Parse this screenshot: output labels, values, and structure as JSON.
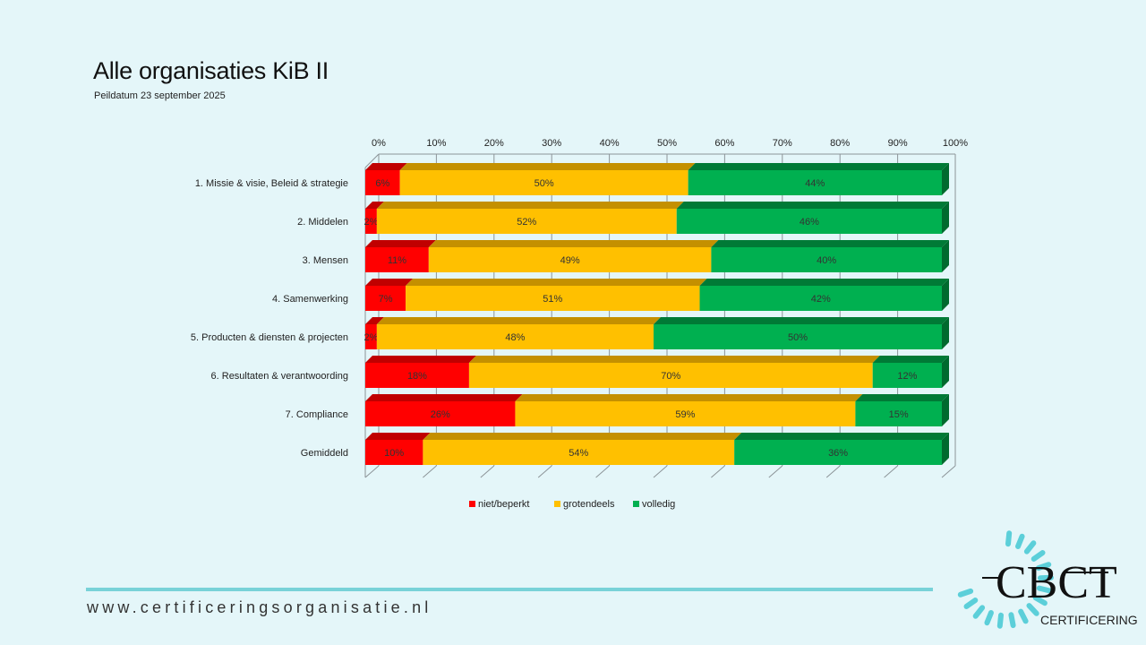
{
  "slide": {
    "title": "Alle organisaties KiB II",
    "subtitle": "Peildatum 23 september 2025",
    "footer_url": "www.certificeringsorganisatie.nl",
    "logo": {
      "mark": "CBCT",
      "text": "CERTIFICERING",
      "accent_color": "#5ccfd9"
    }
  },
  "chart_data": {
    "type": "bar",
    "orientation": "horizontal",
    "stacked": "percent",
    "style_3d": true,
    "title": "",
    "xlabel": "",
    "ylabel": "",
    "xlim": [
      0,
      100
    ],
    "x_ticks": [
      "0%",
      "10%",
      "20%",
      "30%",
      "40%",
      "50%",
      "60%",
      "70%",
      "80%",
      "90%",
      "100%"
    ],
    "x_axis_position": "top",
    "grid": true,
    "legend_position": "bottom",
    "categories": [
      "1. Missie & visie, Beleid & strategie",
      "2. Middelen",
      "3. Mensen",
      "4. Samenwerking",
      "5. Producten & diensten & projecten",
      "6. Resultaten & verantwoording",
      "7. Compliance",
      "Gemiddeld"
    ],
    "series": [
      {
        "name": "niet/beperkt",
        "color": "#ff0000",
        "top_color": "#c00000",
        "side_color": "#b00000",
        "values": [
          6,
          2,
          11,
          7,
          2,
          18,
          26,
          10
        ],
        "labels": [
          "6%",
          "2%",
          "11%",
          "7%",
          "2%",
          "18%",
          "26%",
          "10%"
        ]
      },
      {
        "name": "grotendeels",
        "color": "#ffc000",
        "top_color": "#c49000",
        "side_color": "#b08000",
        "values": [
          50,
          52,
          49,
          51,
          48,
          70,
          59,
          54
        ],
        "labels": [
          "50%",
          "52%",
          "49%",
          "51%",
          "48%",
          "70%",
          "59%",
          "54%"
        ]
      },
      {
        "name": "volledig",
        "color": "#00b050",
        "top_color": "#007a36",
        "side_color": "#006a2e",
        "values": [
          44,
          46,
          40,
          42,
          50,
          12,
          15,
          36
        ],
        "labels": [
          "44%",
          "46%",
          "40%",
          "42%",
          "50%",
          "12%",
          "15%",
          "36%"
        ]
      }
    ]
  }
}
